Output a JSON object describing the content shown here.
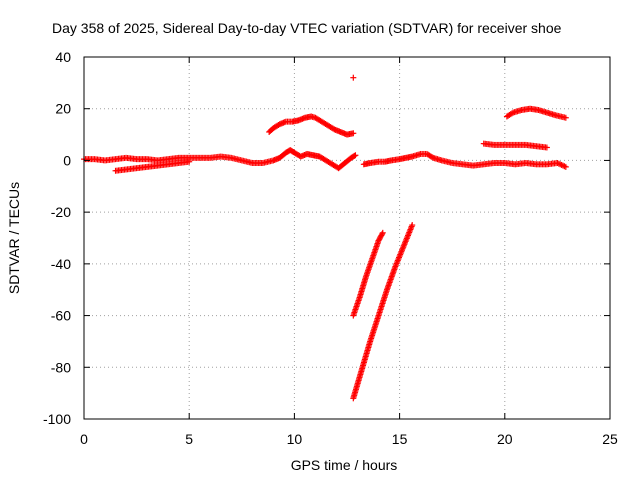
{
  "chart_data": {
    "type": "scatter",
    "title": "Day 358 of 2025, Sidereal Day-to-day VTEC variation (SDTVAR) for receiver shoe",
    "xlabel": "GPS time / hours",
    "ylabel": "SDTVAR / TECUs",
    "xlim": [
      0,
      25
    ],
    "ylim": [
      -100,
      40
    ],
    "xticks": [
      "0",
      "5",
      "10",
      "15",
      "20",
      "25"
    ],
    "yticks": [
      "-100",
      "-80",
      "-60",
      "-40",
      "-20",
      "0",
      "20",
      "40"
    ],
    "grid": true,
    "marker": "+",
    "color": "#ff0000",
    "series": [
      {
        "x": [
          0.0,
          0.5,
          1.0,
          1.5,
          2.0,
          2.5,
          3.0,
          3.5,
          4.0,
          4.5,
          5.0,
          5.5,
          6.0,
          6.5,
          7.0,
          7.5,
          8.0,
          8.5,
          9.0,
          9.3,
          9.6,
          9.8,
          10.0,
          10.3,
          10.6,
          10.9,
          11.2,
          11.5,
          11.8,
          12.1,
          12.4,
          12.7,
          12.9
        ],
        "y": [
          0.5,
          0.5,
          0.0,
          0.5,
          1.0,
          0.5,
          0.5,
          0.0,
          0.5,
          1.0,
          1.0,
          1.0,
          1.0,
          1.5,
          1.0,
          0.0,
          -1.0,
          -1.0,
          0.0,
          1.0,
          3.0,
          4.0,
          3.0,
          1.5,
          2.5,
          2.0,
          1.5,
          0.0,
          -1.5,
          -3.0,
          -1.0,
          1.0,
          2.0
        ]
      },
      {
        "x": [
          1.5,
          2.0,
          2.5,
          3.0,
          3.5,
          4.0,
          4.5,
          5.0
        ],
        "y": [
          -4.0,
          -3.5,
          -3.0,
          -2.5,
          -2.0,
          -1.5,
          -1.0,
          -0.5
        ]
      },
      {
        "x": [
          8.8,
          9.0,
          9.3,
          9.6,
          9.9,
          10.2,
          10.5,
          10.8,
          11.0,
          11.3,
          11.6,
          11.9,
          12.2,
          12.5,
          12.8
        ],
        "y": [
          11.0,
          12.5,
          14.0,
          15.0,
          15.0,
          15.5,
          16.5,
          17.0,
          16.5,
          15.0,
          13.5,
          12.0,
          11.0,
          10.0,
          10.5
        ]
      },
      {
        "x": [
          12.8
        ],
        "y": [
          32.0
        ]
      },
      {
        "x": [
          13.3,
          13.6,
          14.0,
          14.3,
          14.6,
          15.0,
          15.3,
          15.6,
          16.0,
          16.3,
          16.6,
          17.0,
          17.5,
          18.0,
          18.5,
          19.0,
          19.5,
          20.0,
          20.5,
          21.0,
          21.5,
          22.0,
          22.5,
          22.9
        ],
        "y": [
          -1.5,
          -1.0,
          -0.5,
          -0.5,
          0.0,
          0.5,
          1.0,
          1.5,
          2.5,
          2.5,
          1.0,
          0.0,
          -1.0,
          -1.5,
          -2.0,
          -1.5,
          -1.0,
          -1.0,
          -1.5,
          -1.0,
          -1.5,
          -1.5,
          -1.0,
          -2.5
        ]
      },
      {
        "x": [
          12.8,
          13.1,
          13.4,
          13.7,
          14.0,
          14.2
        ],
        "y": [
          -60.0,
          -53.0,
          -45.0,
          -38.0,
          -31.0,
          -28.0
        ]
      },
      {
        "x": [
          12.8,
          13.2,
          13.6,
          14.0,
          14.4,
          14.8,
          15.2,
          15.6
        ],
        "y": [
          -92.0,
          -81.0,
          -70.0,
          -60.0,
          -50.0,
          -41.0,
          -33.0,
          -25.0
        ]
      },
      {
        "x": [
          19.0,
          19.5,
          20.0,
          20.5,
          21.0,
          21.5,
          22.0
        ],
        "y": [
          6.5,
          6.0,
          6.0,
          6.0,
          6.0,
          5.5,
          5.0
        ]
      },
      {
        "x": [
          20.1,
          20.4,
          20.8,
          21.2,
          21.6,
          22.0,
          22.4,
          22.9
        ],
        "y": [
          17.0,
          18.5,
          19.5,
          20.0,
          19.5,
          18.5,
          17.5,
          16.5
        ]
      }
    ]
  }
}
